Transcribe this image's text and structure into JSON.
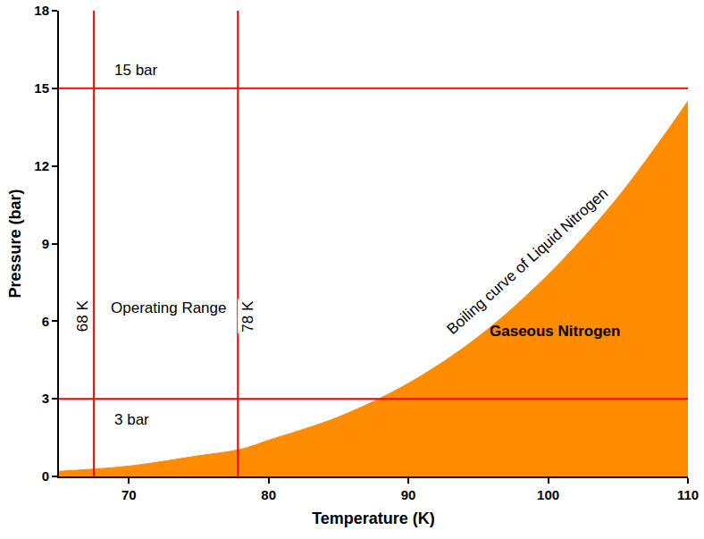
{
  "chart_data": {
    "type": "area",
    "xlabel": "Temperature (K)",
    "ylabel": "Pressure (bar)",
    "x": [
      65,
      70,
      75,
      78,
      80,
      85,
      90,
      95,
      100,
      105,
      110
    ],
    "values": [
      0.2,
      0.4,
      0.8,
      1.05,
      1.4,
      2.3,
      3.6,
      5.4,
      7.8,
      10.8,
      14.5
    ],
    "color": "#ff8c00",
    "xlim": [
      65,
      110
    ],
    "ylim": [
      0,
      18
    ],
    "xticks": [
      70,
      80,
      90,
      100,
      110
    ],
    "yticks": [
      0,
      3,
      6,
      9,
      12,
      15,
      18
    ],
    "grid": false,
    "reference_lines": [
      {
        "axis": "y",
        "value": 15,
        "label": "15 bar",
        "label_x": 70.5,
        "label_y": 15.7,
        "color": "#ff0000"
      },
      {
        "axis": "y",
        "value": 3,
        "label": "3 bar",
        "label_x": 70.2,
        "label_y": 2.2,
        "color": "#ff0000"
      },
      {
        "axis": "x",
        "value": 67.5,
        "label": "68 K",
        "label_x": 66.7,
        "label_y": 6.2,
        "color": "#ff0000"
      },
      {
        "axis": "x",
        "value": 77.8,
        "label": "78 K",
        "label_x": 78.5,
        "label_y": 6.2,
        "color": "#ff0000"
      }
    ],
    "annotations": [
      {
        "text": "Operating Range",
        "x": 72.8,
        "y": 6.5
      }
    ],
    "curve_label": {
      "text": "Boiling curve of Liquid Nitrogen",
      "x": 98.5,
      "y": 8.3
    },
    "region_label": {
      "text": "Gaseous Nitrogen",
      "x": 100.5,
      "y": 5.6
    }
  }
}
